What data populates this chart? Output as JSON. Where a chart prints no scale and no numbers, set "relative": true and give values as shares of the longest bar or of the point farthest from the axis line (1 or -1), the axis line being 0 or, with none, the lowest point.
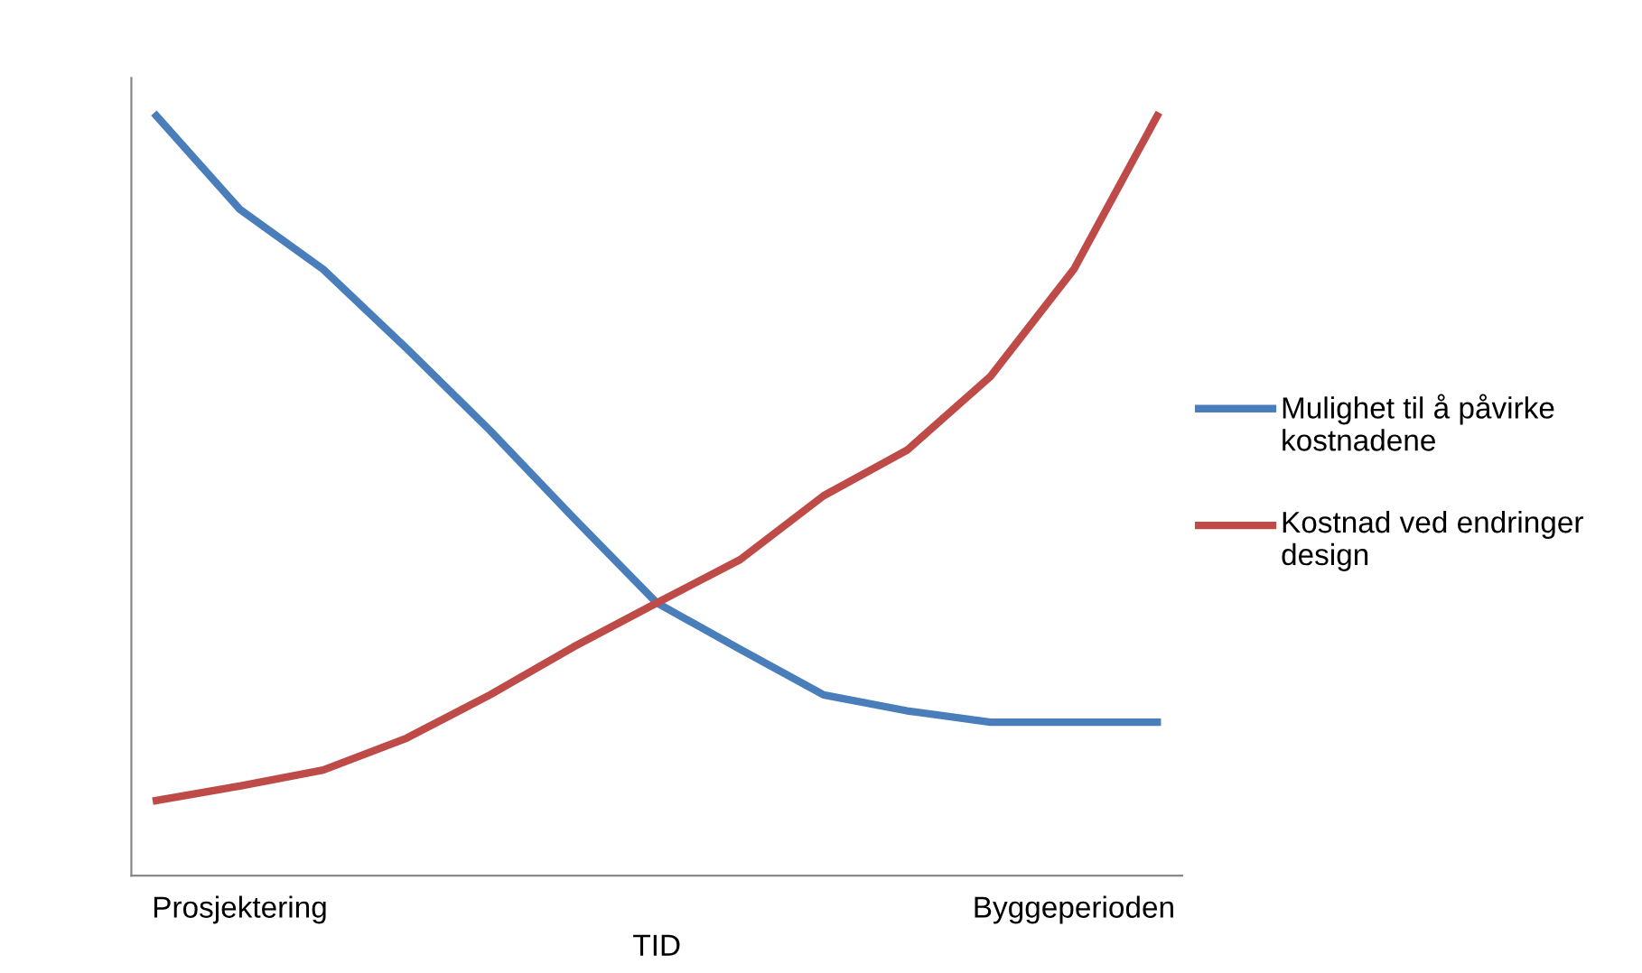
{
  "chart_data": {
    "type": "line",
    "relative": true,
    "xlabel": "TID",
    "categories": [
      null,
      "Prosjektering",
      null,
      null,
      null,
      null,
      null,
      null,
      null,
      null,
      null,
      "Byggeperioden",
      null
    ],
    "series": [
      {
        "name": "Mulighet til å påvirke kostnadene",
        "color": "#4a7ebb",
        "values": [
          1,
          0.877,
          0.798,
          0.694,
          0.586,
          0.471,
          0.359,
          0.298,
          0.238,
          0.217,
          0.202,
          0.202,
          0.202
        ]
      },
      {
        "name": "Kostnad ved endringer design",
        "color": "#be4b48",
        "values": [
          0.099,
          0.118,
          0.139,
          0.181,
          0.238,
          0.301,
          0.359,
          0.416,
          0.5,
          0.56,
          0.657,
          0.798,
          1
        ]
      }
    ],
    "legend": "right",
    "grid": false,
    "marker": "none",
    "line_style": "solid"
  }
}
